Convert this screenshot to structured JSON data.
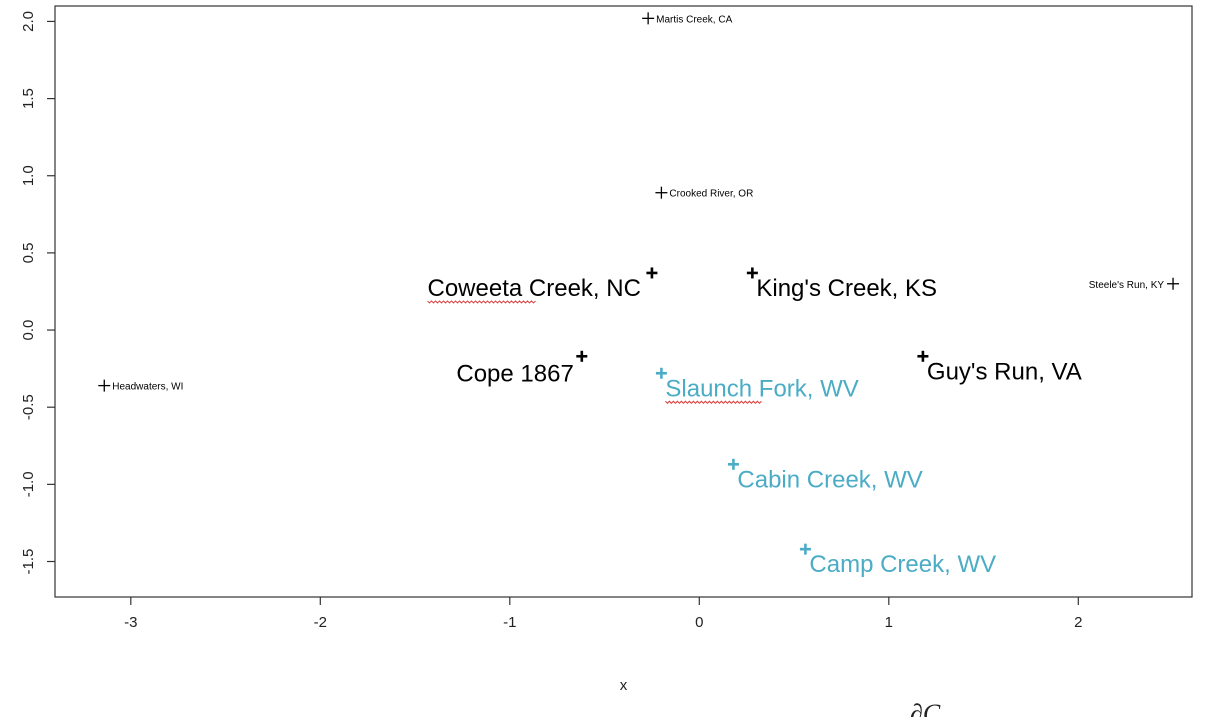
{
  "chart_data": {
    "type": "scatter",
    "title": "",
    "xlabel": "x",
    "ylabel": "",
    "xlim": [
      -3.4,
      2.6
    ],
    "ylim": [
      -1.73,
      2.1
    ],
    "xticks": [
      -3,
      -2,
      -1,
      0,
      1,
      2
    ],
    "yticks": [
      2.0,
      1.5,
      1.0,
      0.5,
      0.0,
      -0.5,
      -1.0,
      -1.5
    ],
    "xtick_labels": [
      "-3",
      "-2",
      "-1",
      "0",
      "1",
      "2"
    ],
    "ytick_labels": [
      "2.0",
      "1.5",
      "1.0",
      "0.5",
      "0.0",
      "-0.5",
      "-1.0",
      "-1.5"
    ],
    "grid": false,
    "points": [
      {
        "label": "Martis Creek, CA",
        "x": -0.27,
        "y": 2.02,
        "color": "#000000",
        "style": "small",
        "side": "right",
        "underline": false
      },
      {
        "label": "Crooked River, OR",
        "x": -0.2,
        "y": 0.89,
        "color": "#000000",
        "style": "small",
        "side": "right",
        "underline": false
      },
      {
        "label": "Coweeta Creek, NC",
        "x": -0.25,
        "y": 0.37,
        "color": "#000000",
        "style": "large",
        "side": "left",
        "underline": true
      },
      {
        "label": "King's Creek, KS",
        "x": 0.28,
        "y": 0.37,
        "color": "#000000",
        "style": "large",
        "side": "right",
        "underline": false
      },
      {
        "label": "Steele's Run, KY",
        "x": 2.5,
        "y": 0.3,
        "color": "#000000",
        "style": "small",
        "side": "left",
        "underline": false
      },
      {
        "label": "Headwaters, WI",
        "x": -3.14,
        "y": -0.36,
        "color": "#000000",
        "style": "small",
        "side": "right",
        "underline": false
      },
      {
        "label": "Cope 1867",
        "x": -0.62,
        "y": -0.17,
        "color": "#000000",
        "style": "large",
        "side": "left",
        "underline": false
      },
      {
        "label": "Guy's Run, VA",
        "x": 1.18,
        "y": -0.17,
        "color": "#000000",
        "style": "large",
        "side": "right",
        "underline": false
      },
      {
        "label": "Slaunch Fork, WV",
        "x": -0.2,
        "y": -0.28,
        "color": "#4bacc6",
        "style": "large",
        "side": "right",
        "underline": true
      },
      {
        "label": "Cabin Creek, WV",
        "x": 0.18,
        "y": -0.87,
        "color": "#4bacc6",
        "style": "large",
        "side": "right",
        "underline": false
      },
      {
        "label": "Camp Creek, WV",
        "x": 0.56,
        "y": -1.42,
        "color": "#4bacc6",
        "style": "large",
        "side": "right",
        "underline": false
      }
    ],
    "colors": {
      "black_series": "#000000",
      "wv_series": "#4bacc6",
      "axis": "#333333"
    }
  }
}
